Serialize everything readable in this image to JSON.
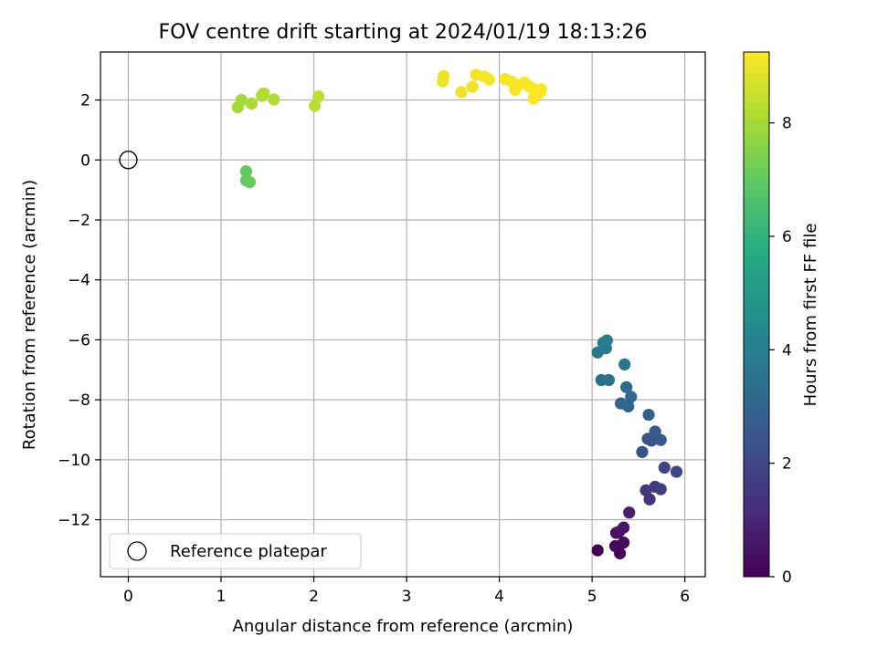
{
  "chart_data": {
    "type": "scatter",
    "title": "FOV centre drift starting at 2024/01/19 18:13:26",
    "xlabel": "Angular distance from reference (arcmin)",
    "ylabel": "Rotation from reference (arcmin)",
    "xlim": [
      -0.3,
      6.22
    ],
    "ylim": [
      -13.9,
      3.6
    ],
    "xticks": [
      0,
      1,
      2,
      3,
      4,
      5,
      6
    ],
    "yticks": [
      -12,
      -10,
      -8,
      -6,
      -4,
      -2,
      0,
      2
    ],
    "grid": true,
    "legend": {
      "placement": "lower-left",
      "entries": [
        "Reference platepar"
      ]
    },
    "reference_point": {
      "name": "Reference platepar",
      "x": 0,
      "y": 0
    },
    "colorbar": {
      "label": "Hours from first FF file",
      "range": [
        0,
        9.25
      ],
      "ticks": [
        0,
        2,
        4,
        6,
        8
      ],
      "colormap": "viridis"
    },
    "points": [
      {
        "x": 5.06,
        "y": -13.02,
        "hours": 0.0
      },
      {
        "x": 5.3,
        "y": -13.12,
        "hours": 0.1
      },
      {
        "x": 5.25,
        "y": -12.88,
        "hours": 0.2
      },
      {
        "x": 5.34,
        "y": -12.76,
        "hours": 0.3
      },
      {
        "x": 5.26,
        "y": -12.44,
        "hours": 0.4
      },
      {
        "x": 5.29,
        "y": -12.4,
        "hours": 0.5
      },
      {
        "x": 5.34,
        "y": -12.26,
        "hours": 0.6
      },
      {
        "x": 5.4,
        "y": -11.76,
        "hours": 0.8
      },
      {
        "x": 5.62,
        "y": -11.32,
        "hours": 1.4
      },
      {
        "x": 5.58,
        "y": -11.02,
        "hours": 1.5
      },
      {
        "x": 5.68,
        "y": -10.9,
        "hours": 1.6
      },
      {
        "x": 5.74,
        "y": -10.98,
        "hours": 1.7
      },
      {
        "x": 5.78,
        "y": -10.26,
        "hours": 1.9
      },
      {
        "x": 5.91,
        "y": -10.4,
        "hours": 2.0
      },
      {
        "x": 5.54,
        "y": -9.74,
        "hours": 2.3
      },
      {
        "x": 5.6,
        "y": -9.3,
        "hours": 2.5
      },
      {
        "x": 5.64,
        "y": -9.36,
        "hours": 2.5
      },
      {
        "x": 5.68,
        "y": -9.06,
        "hours": 2.6
      },
      {
        "x": 5.74,
        "y": -9.34,
        "hours": 2.6
      },
      {
        "x": 5.61,
        "y": -8.5,
        "hours": 2.9
      },
      {
        "x": 5.31,
        "y": -8.12,
        "hours": 3.0
      },
      {
        "x": 5.39,
        "y": -8.22,
        "hours": 3.0
      },
      {
        "x": 5.42,
        "y": -7.9,
        "hours": 3.2
      },
      {
        "x": 5.37,
        "y": -7.58,
        "hours": 3.3
      },
      {
        "x": 5.1,
        "y": -7.34,
        "hours": 3.4
      },
      {
        "x": 5.18,
        "y": -7.34,
        "hours": 3.5
      },
      {
        "x": 5.35,
        "y": -6.82,
        "hours": 3.6
      },
      {
        "x": 5.06,
        "y": -6.42,
        "hours": 3.7
      },
      {
        "x": 5.15,
        "y": -6.28,
        "hours": 3.8
      },
      {
        "x": 5.12,
        "y": -6.1,
        "hours": 3.9
      },
      {
        "x": 5.16,
        "y": -6.02,
        "hours": 3.9
      },
      {
        "x": 1.27,
        "y": -0.38,
        "hours": 7.0
      },
      {
        "x": 1.27,
        "y": -0.68,
        "hours": 7.0
      },
      {
        "x": 1.31,
        "y": -0.74,
        "hours": 7.1
      },
      {
        "x": 1.18,
        "y": 1.76,
        "hours": 8.0
      },
      {
        "x": 1.22,
        "y": 2.0,
        "hours": 8.0
      },
      {
        "x": 1.33,
        "y": 1.88,
        "hours": 8.1
      },
      {
        "x": 1.44,
        "y": 2.14,
        "hours": 8.1
      },
      {
        "x": 1.46,
        "y": 2.22,
        "hours": 8.2
      },
      {
        "x": 1.57,
        "y": 2.02,
        "hours": 8.2
      },
      {
        "x": 2.01,
        "y": 1.8,
        "hours": 8.3
      },
      {
        "x": 2.05,
        "y": 2.12,
        "hours": 8.3
      },
      {
        "x": 3.39,
        "y": 2.62,
        "hours": 9.0
      },
      {
        "x": 3.4,
        "y": 2.8,
        "hours": 9.0
      },
      {
        "x": 3.59,
        "y": 2.26,
        "hours": 9.05
      },
      {
        "x": 3.71,
        "y": 2.44,
        "hours": 9.05
      },
      {
        "x": 3.75,
        "y": 2.84,
        "hours": 9.1
      },
      {
        "x": 3.84,
        "y": 2.78,
        "hours": 9.1
      },
      {
        "x": 3.89,
        "y": 2.68,
        "hours": 9.1
      },
      {
        "x": 4.06,
        "y": 2.7,
        "hours": 9.15
      },
      {
        "x": 4.13,
        "y": 2.62,
        "hours": 9.15
      },
      {
        "x": 4.17,
        "y": 2.34,
        "hours": 9.15
      },
      {
        "x": 4.2,
        "y": 2.5,
        "hours": 9.2
      },
      {
        "x": 4.27,
        "y": 2.58,
        "hours": 9.2
      },
      {
        "x": 4.32,
        "y": 2.46,
        "hours": 9.2
      },
      {
        "x": 4.37,
        "y": 2.36,
        "hours": 9.2
      },
      {
        "x": 4.37,
        "y": 2.04,
        "hours": 9.25
      },
      {
        "x": 4.44,
        "y": 2.24,
        "hours": 9.25
      },
      {
        "x": 4.45,
        "y": 2.36,
        "hours": 9.25
      }
    ]
  }
}
